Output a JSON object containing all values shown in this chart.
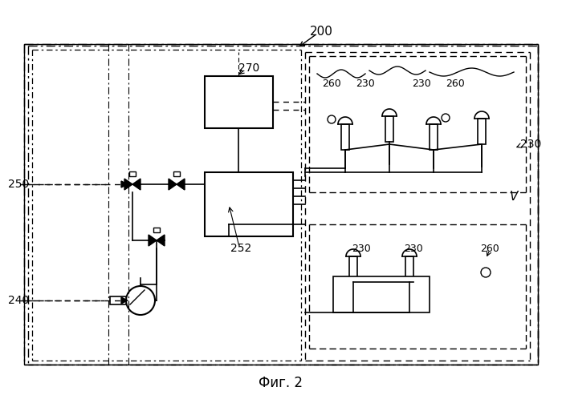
{
  "title": "Фиг. 2",
  "label_200": "200",
  "label_270": "270",
  "label_260": "260",
  "label_230": "230",
  "label_252": "252",
  "label_250": "250",
  "label_240": "240",
  "label_V": "V",
  "bg_color": "#ffffff",
  "line_color": "#000000",
  "dash_color": "#000000"
}
